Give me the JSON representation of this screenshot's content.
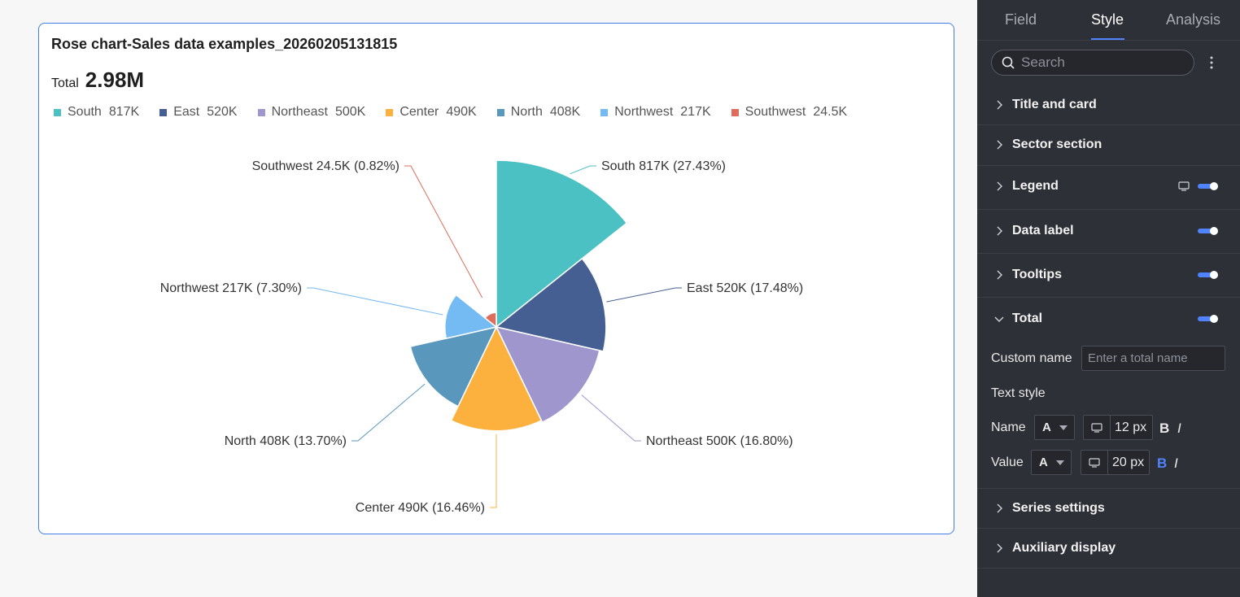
{
  "card": {
    "title": "Rose chart-Sales data examples_20260205131815",
    "total_name": "Total",
    "total_value": "2.98M"
  },
  "chart_data": {
    "type": "pie",
    "subtype": "rose",
    "title": "Rose chart-Sales data examples_20260205131815",
    "total": "2.98M",
    "legend_position": "top-left",
    "categories": [
      "South",
      "East",
      "Northeast",
      "Center",
      "North",
      "Northwest",
      "Southwest"
    ],
    "values": [
      817000,
      520000,
      500000,
      490000,
      408000,
      217000,
      24500
    ],
    "display_values": [
      "817K",
      "520K",
      "500K",
      "490K",
      "408K",
      "217K",
      "24.5K"
    ],
    "percents": [
      "27.43%",
      "17.48%",
      "16.80%",
      "16.46%",
      "13.70%",
      "7.30%",
      "0.82%"
    ],
    "labels": [
      "South 817K (27.43%)",
      "East 520K (17.48%)",
      "Northeast 500K (16.80%)",
      "Center 490K (16.46%)",
      "North 408K (13.70%)",
      "Northwest 217K (7.30%)",
      "Southwest 24.5K (0.82%)"
    ],
    "colors": [
      "#4cc1c3",
      "#465f92",
      "#9f96cd",
      "#fcb13f",
      "#5997bd",
      "#74baf3",
      "#e06c5b"
    ]
  },
  "panel": {
    "tabs": [
      "Field",
      "Style",
      "Analysis"
    ],
    "active_tab": "Style",
    "search_placeholder": "Search",
    "sections": {
      "title_card": "Title and card",
      "sector": "Sector section",
      "legend": "Legend",
      "data_label": "Data label",
      "tooltips": "Tooltips",
      "total": "Total",
      "series": "Series settings",
      "auxiliary": "Auxiliary display"
    },
    "total_settings": {
      "custom_name_label": "Custom name",
      "custom_name_placeholder": "Enter a total name",
      "text_style_label": "Text style",
      "name_label": "Name",
      "value_label": "Value",
      "font_glyph": "A",
      "name_size": "12 px",
      "value_size": "20 px",
      "bold_glyph": "B",
      "italic_glyph": "I"
    },
    "accent": "#4f83ff"
  }
}
